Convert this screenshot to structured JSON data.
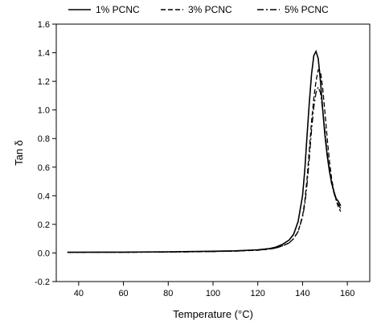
{
  "chart_data": {
    "type": "line",
    "xlabel": "Temperature (°C)",
    "ylabel": "Tan δ",
    "xlim": [
      30,
      170
    ],
    "ylim": [
      -0.2,
      1.6
    ],
    "xticks": [
      "40",
      "60",
      "80",
      "100",
      "120",
      "140",
      "160"
    ],
    "yticks": [
      "-0.2",
      "0.0",
      "0.2",
      "0.4",
      "0.6",
      "0.8",
      "1.0",
      "1.2",
      "1.4",
      "1.6"
    ],
    "grid": false,
    "legend_position": "top",
    "series": [
      {
        "name": "1% PCNC",
        "dash": "solid",
        "x": [
          35,
          60,
          80,
          100,
          110,
          120,
          125,
          128,
          131,
          134,
          136,
          138,
          140,
          141,
          142,
          143,
          144,
          145,
          146,
          147,
          148,
          149,
          150,
          151,
          152,
          153,
          154,
          155,
          156,
          157
        ],
        "y": [
          0.005,
          0.006,
          0.008,
          0.012,
          0.015,
          0.022,
          0.03,
          0.04,
          0.06,
          0.09,
          0.13,
          0.22,
          0.4,
          0.58,
          0.82,
          1.05,
          1.25,
          1.38,
          1.41,
          1.36,
          1.2,
          1.0,
          0.82,
          0.68,
          0.57,
          0.49,
          0.43,
          0.38,
          0.36,
          0.33
        ]
      },
      {
        "name": "3% PCNC",
        "dash": "dashed",
        "x": [
          35,
          60,
          80,
          100,
          110,
          120,
          125,
          128,
          131,
          134,
          136,
          138,
          140,
          141,
          142,
          143,
          144,
          145,
          146,
          147,
          148,
          149,
          150,
          151,
          152,
          153,
          154,
          155,
          156,
          157
        ],
        "y": [
          0.004,
          0.005,
          0.007,
          0.01,
          0.013,
          0.019,
          0.026,
          0.034,
          0.05,
          0.07,
          0.1,
          0.15,
          0.26,
          0.36,
          0.52,
          0.72,
          0.92,
          1.08,
          1.2,
          1.28,
          1.27,
          1.15,
          0.98,
          0.8,
          0.64,
          0.52,
          0.43,
          0.37,
          0.32,
          0.29
        ]
      },
      {
        "name": "5% PCNC",
        "dash": "dashdot",
        "x": [
          35,
          60,
          80,
          100,
          110,
          120,
          125,
          128,
          131,
          134,
          136,
          138,
          140,
          141,
          142,
          143,
          144,
          145,
          146,
          147,
          148,
          149,
          150,
          151,
          152,
          153,
          154,
          155,
          156,
          157
        ],
        "y": [
          0.004,
          0.005,
          0.006,
          0.01,
          0.013,
          0.02,
          0.027,
          0.035,
          0.05,
          0.07,
          0.1,
          0.15,
          0.25,
          0.34,
          0.48,
          0.66,
          0.86,
          1.02,
          1.12,
          1.16,
          1.12,
          1.0,
          0.85,
          0.7,
          0.58,
          0.48,
          0.42,
          0.37,
          0.34,
          0.31
        ]
      }
    ]
  }
}
